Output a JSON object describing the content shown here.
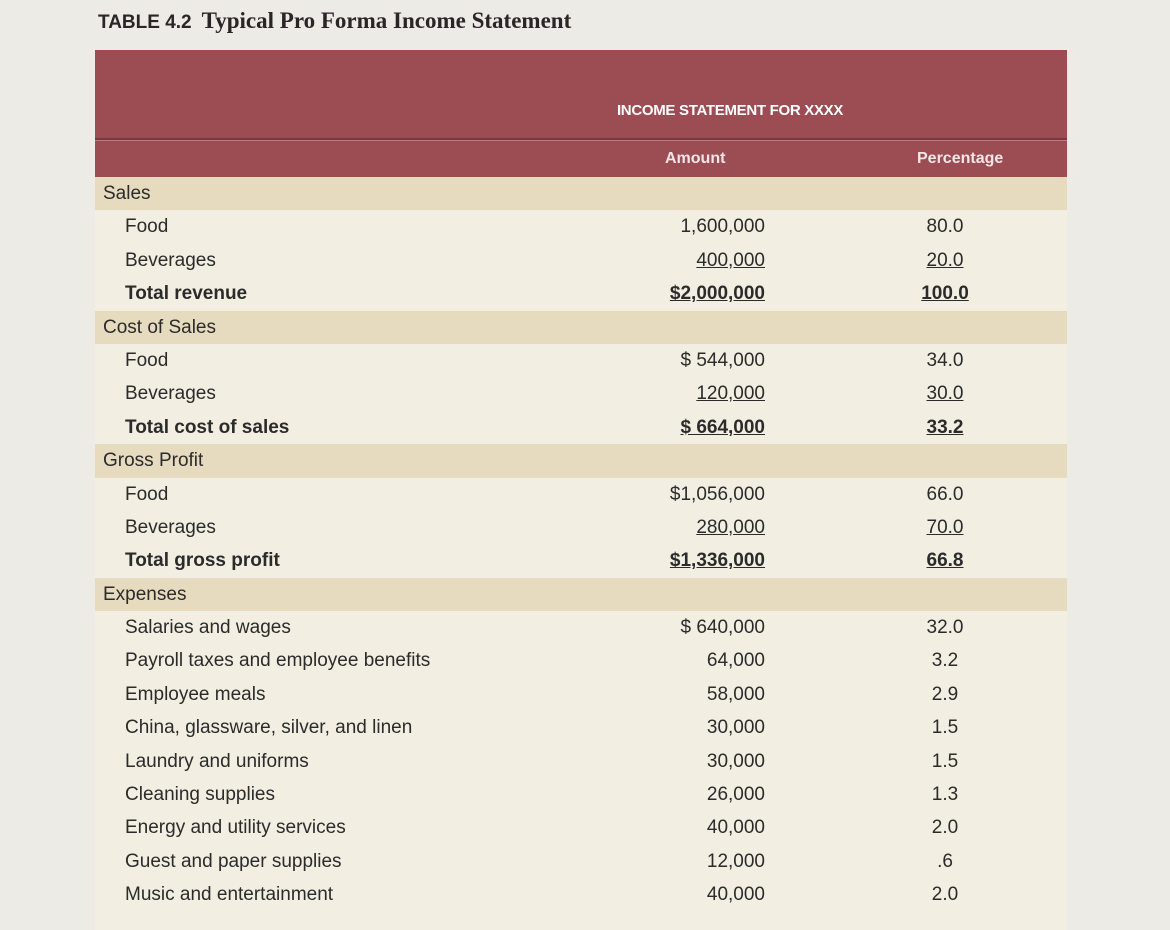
{
  "title": {
    "number": "TABLE 4.2",
    "text": "Typical Pro Forma Income Statement"
  },
  "header": {
    "banner": "INCOME STATEMENT FOR XXXX",
    "columns": [
      "Amount",
      "Percentage"
    ]
  },
  "sections": [
    {
      "label": "Sales",
      "rows": [
        [
          "Food",
          "1,600,000",
          "80.0"
        ],
        [
          "Beverages",
          "400,000",
          "20.0"
        ],
        [
          "Total revenue",
          "$2,000,000",
          "100.0"
        ]
      ]
    },
    {
      "label": "Cost of Sales",
      "rows": [
        [
          "Food",
          "$ 544,000",
          "34.0"
        ],
        [
          "Beverages",
          "120,000",
          "30.0"
        ],
        [
          "Total cost of sales",
          "$ 664,000",
          "33.2"
        ]
      ]
    },
    {
      "label": "Gross Profit",
      "rows": [
        [
          "Food",
          "$1,056,000",
          "66.0"
        ],
        [
          "Beverages",
          "280,000",
          "70.0"
        ],
        [
          "Total gross profit",
          "$1,336,000",
          "66.8"
        ]
      ]
    },
    {
      "label": "Expenses",
      "rows": [
        [
          "Salaries and wages",
          "$ 640,000",
          "32.0"
        ],
        [
          "Payroll taxes and employee benefits",
          "64,000",
          "3.2"
        ],
        [
          "Employee meals",
          "58,000",
          "2.9"
        ],
        [
          "China, glassware, silver, and linen",
          "30,000",
          "1.5"
        ],
        [
          "Laundry and uniforms",
          "30,000",
          "1.5"
        ],
        [
          "Cleaning supplies",
          "26,000",
          "1.3"
        ],
        [
          "Energy and utility services",
          "40,000",
          "2.0"
        ],
        [
          "Guest and paper supplies",
          "12,000",
          ".6"
        ],
        [
          "Music and entertainment",
          "40,000",
          "2.0"
        ]
      ]
    }
  ]
}
